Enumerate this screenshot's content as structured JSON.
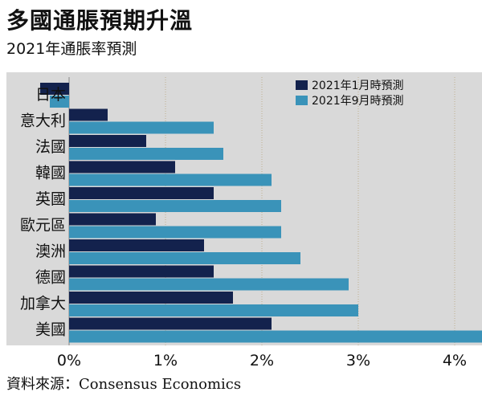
{
  "header": {
    "title": "多國通脹預期升溫",
    "subtitle": "2021年通脹率預測"
  },
  "footer": {
    "source_label": "資料來源：",
    "source_name": "Consensus Economics"
  },
  "colors": {
    "panel_bg": "#d9d9d9",
    "series_jan": "#13224d",
    "series_sep": "#3a93b9",
    "grid": "#c0b090",
    "text": "#111111"
  },
  "chart_data": {
    "type": "bar",
    "orientation": "horizontal",
    "categories": [
      "日本",
      "意大利",
      "法國",
      "韓國",
      "英國",
      "歐元區",
      "澳洲",
      "德國",
      "加拿大",
      "美國"
    ],
    "series": [
      {
        "name": "2021年1月時預測",
        "values": [
          -0.3,
          0.4,
          0.8,
          1.1,
          1.5,
          0.9,
          1.4,
          1.5,
          1.7,
          2.1
        ],
        "color": "#13224d"
      },
      {
        "name": "2021年9月時預測",
        "values": [
          -0.2,
          1.5,
          1.6,
          2.1,
          2.2,
          2.2,
          2.4,
          2.9,
          3.0,
          4.3
        ],
        "color": "#3a93b9"
      }
    ],
    "x_axis": {
      "min": 0,
      "max": 4.3,
      "ticks": [
        "0%",
        "1%",
        "2%",
        "3%",
        "4%"
      ],
      "tick_values": [
        0,
        1,
        2,
        3,
        4
      ]
    },
    "legend_position": "top-right",
    "grid": true
  }
}
